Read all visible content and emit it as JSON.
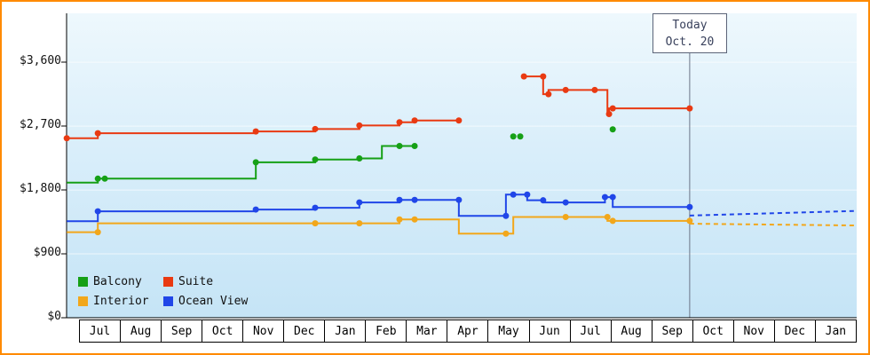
{
  "window": {
    "frame_border_color": "#ff8a00",
    "background": "#ffffff"
  },
  "today_marker": {
    "line1": "Today",
    "line2": "Oct. 20"
  },
  "legend": {
    "items": [
      {
        "label": "Balcony",
        "color": "#16a016"
      },
      {
        "label": "Suite",
        "color": "#e93a12"
      },
      {
        "label": "Interior",
        "color": "#f2a71b"
      },
      {
        "label": "Ocean View",
        "color": "#2046e8"
      }
    ]
  },
  "chart_data": {
    "type": "line",
    "title": "",
    "xlabel": "",
    "ylabel": "",
    "ylim": [
      0,
      4290
    ],
    "grid": true,
    "legend_position": "inside-bottom-left",
    "x_months": [
      "Jul",
      "Aug",
      "Sep",
      "Oct",
      "Nov",
      "Dec",
      "Jan",
      "Feb",
      "Mar",
      "Apr",
      "May",
      "Jun",
      "Jul",
      "Aug",
      "Sep",
      "Oct",
      "Nov",
      "Dec",
      "Jan"
    ],
    "y_ticks": [
      {
        "label": "$0",
        "value": 0
      },
      {
        "label": "$900",
        "value": 900
      },
      {
        "label": "$1,800",
        "value": 1800
      },
      {
        "label": "$2,700",
        "value": 2700
      },
      {
        "label": "$3,600",
        "value": 3600
      }
    ],
    "today": {
      "label": "Today Oct. 20",
      "month_frac": 14.92,
      "line_color": "#6b7488"
    },
    "series": [
      {
        "name": "Interior",
        "color": "#f2a71b",
        "segments": [
          {
            "style": "solid",
            "points": [
              [
                -0.3,
                1205
              ],
              [
                0.46,
                1205
              ],
              [
                0.46,
                1330
              ],
              [
                7.83,
                1330
              ],
              [
                7.83,
                1385
              ],
              [
                9.28,
                1385
              ],
              [
                9.28,
                1185
              ],
              [
                10.61,
                1185
              ],
              [
                10.61,
                1420
              ],
              [
                12.91,
                1420
              ],
              [
                12.91,
                1365
              ],
              [
                14.92,
                1365
              ]
            ]
          },
          {
            "style": "dashed",
            "points": [
              [
                14.92,
                1325
              ],
              [
                19.0,
                1300
              ]
            ]
          }
        ],
        "markers": [
          [
            0.46,
            1205
          ],
          [
            5.77,
            1330
          ],
          [
            6.85,
            1330
          ],
          [
            7.83,
            1385
          ],
          [
            8.2,
            1385
          ],
          [
            10.43,
            1185
          ],
          [
            11.89,
            1420
          ],
          [
            12.91,
            1420
          ],
          [
            13.04,
            1365
          ],
          [
            14.92,
            1365
          ]
        ]
      },
      {
        "name": "Ocean View",
        "color": "#2046e8",
        "segments": [
          {
            "style": "solid",
            "points": [
              [
                -0.3,
                1360
              ],
              [
                0.46,
                1360
              ],
              [
                0.46,
                1500
              ],
              [
                4.32,
                1500
              ],
              [
                4.32,
                1525
              ],
              [
                5.77,
                1525
              ],
              [
                5.77,
                1550
              ],
              [
                6.85,
                1550
              ],
              [
                6.85,
                1625
              ],
              [
                7.83,
                1625
              ],
              [
                7.83,
                1660
              ],
              [
                9.28,
                1660
              ],
              [
                9.28,
                1435
              ],
              [
                10.43,
                1435
              ],
              [
                10.43,
                1735
              ],
              [
                10.95,
                1735
              ],
              [
                10.95,
                1655
              ],
              [
                11.34,
                1655
              ],
              [
                11.34,
                1625
              ],
              [
                12.85,
                1625
              ],
              [
                12.85,
                1700
              ],
              [
                13.04,
                1700
              ],
              [
                13.04,
                1560
              ],
              [
                14.92,
                1560
              ]
            ]
          },
          {
            "style": "dashed",
            "points": [
              [
                14.92,
                1440
              ],
              [
                19.0,
                1505
              ]
            ]
          }
        ],
        "markers": [
          [
            0.46,
            1500
          ],
          [
            4.32,
            1525
          ],
          [
            5.77,
            1550
          ],
          [
            6.85,
            1625
          ],
          [
            7.83,
            1660
          ],
          [
            8.2,
            1660
          ],
          [
            9.28,
            1660
          ],
          [
            10.43,
            1435
          ],
          [
            10.61,
            1735
          ],
          [
            10.95,
            1735
          ],
          [
            11.34,
            1655
          ],
          [
            11.89,
            1625
          ],
          [
            12.85,
            1700
          ],
          [
            13.04,
            1700
          ],
          [
            14.92,
            1560
          ]
        ]
      },
      {
        "name": "Balcony",
        "color": "#16a016",
        "segments": [
          {
            "style": "solid",
            "points": [
              [
                -0.3,
                1905
              ],
              [
                0.46,
                1905
              ],
              [
                0.46,
                1960
              ],
              [
                4.32,
                1960
              ],
              [
                4.32,
                2190
              ],
              [
                5.77,
                2190
              ],
              [
                5.77,
                2230
              ],
              [
                6.85,
                2230
              ],
              [
                6.85,
                2245
              ],
              [
                7.4,
                2245
              ],
              [
                7.4,
                2420
              ],
              [
                8.2,
                2420
              ]
            ]
          }
        ],
        "markers": [
          [
            0.46,
            1960
          ],
          [
            0.63,
            1960
          ],
          [
            4.32,
            2190
          ],
          [
            5.77,
            2230
          ],
          [
            6.85,
            2245
          ],
          [
            7.83,
            2420
          ],
          [
            8.2,
            2420
          ],
          [
            10.61,
            2555
          ],
          [
            10.78,
            2555
          ],
          [
            13.04,
            2655
          ]
        ]
      },
      {
        "name": "Suite",
        "color": "#e93a12",
        "segments": [
          {
            "style": "solid",
            "points": [
              [
                -0.3,
                2530
              ],
              [
                0.46,
                2530
              ],
              [
                0.46,
                2600
              ],
              [
                4.32,
                2600
              ],
              [
                4.32,
                2625
              ],
              [
                5.77,
                2625
              ],
              [
                5.77,
                2660
              ],
              [
                6.85,
                2660
              ],
              [
                6.85,
                2710
              ],
              [
                7.83,
                2710
              ],
              [
                7.83,
                2755
              ],
              [
                8.2,
                2755
              ],
              [
                8.2,
                2780
              ],
              [
                9.28,
                2780
              ]
            ]
          },
          {
            "style": "solid",
            "points": [
              [
                10.87,
                3400
              ],
              [
                11.34,
                3400
              ],
              [
                11.34,
                3150
              ],
              [
                11.47,
                3150
              ],
              [
                11.47,
                3210
              ],
              [
                12.91,
                3210
              ],
              [
                12.91,
                2870
              ],
              [
                12.95,
                2870
              ],
              [
                12.95,
                2950
              ],
              [
                14.92,
                2950
              ]
            ]
          }
        ],
        "markers": [
          [
            -0.3,
            2530
          ],
          [
            0.46,
            2600
          ],
          [
            4.32,
            2625
          ],
          [
            5.77,
            2660
          ],
          [
            6.85,
            2710
          ],
          [
            7.83,
            2755
          ],
          [
            8.2,
            2780
          ],
          [
            9.28,
            2780
          ],
          [
            10.87,
            3400
          ],
          [
            11.34,
            3400
          ],
          [
            11.47,
            3150
          ],
          [
            11.89,
            3210
          ],
          [
            12.6,
            3210
          ],
          [
            12.95,
            2870
          ],
          [
            13.04,
            2950
          ],
          [
            14.92,
            2950
          ]
        ]
      }
    ]
  }
}
